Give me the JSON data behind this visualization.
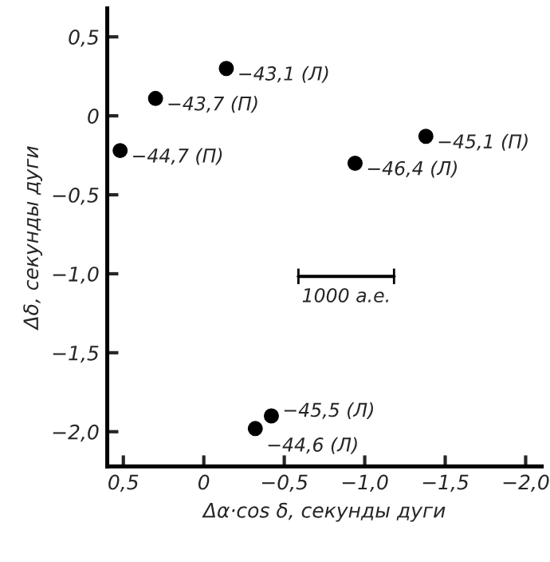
{
  "chart_data": {
    "type": "scatter",
    "xlabel": "Δα·cos δ, секунды дуги",
    "ylabel": "Δδ, секунды дуги",
    "series": [
      {
        "color": "#000000",
        "x": [
          -0.14,
          0.3,
          0.52,
          -1.38,
          -0.94,
          -0.42,
          -0.32
        ],
        "values": [
          0.3,
          0.11,
          -0.22,
          -0.13,
          -0.3,
          -1.9,
          -1.98
        ]
      }
    ],
    "marker": "circle",
    "xlim": [
      0.6,
      -2.1
    ],
    "ylim": [
      -2.22,
      0.68
    ],
    "xticks": [
      {
        "value": 0.5,
        "label": "0,5"
      },
      0,
      {
        "value": -0.5,
        "label": "−0,5"
      },
      {
        "value": -1.0,
        "label": "−1,0"
      },
      {
        "value": -1.5,
        "label": "−1,5"
      },
      {
        "value": -2.0,
        "label": "−2,0"
      }
    ],
    "yticks": [
      {
        "value": 0.5,
        "label": "0,5"
      },
      0,
      {
        "value": -0.5,
        "label": "−0,5"
      },
      {
        "value": -1.0,
        "label": "−1,0"
      },
      {
        "value": -1.5,
        "label": "−1,5"
      },
      {
        "value": -2.0,
        "label": "−2,0"
      }
    ],
    "annotations": [
      {
        "text": "−43,1 (Л)",
        "x": -0.14,
        "y": 0.3
      },
      {
        "text": "−43,7 (П)",
        "x": 0.3,
        "y": 0.11
      },
      {
        "text": "−44,7 (П)",
        "x": 0.52,
        "y": -0.22
      },
      {
        "text": "−45,1 (П)",
        "x": -1.38,
        "y": -0.13
      },
      {
        "text": "−46,4 (Л)",
        "x": -0.94,
        "y": -0.3
      },
      {
        "text": "−45,5 (Л)",
        "x": -0.42,
        "y": -1.9
      },
      {
        "text": "−44,6 (Л)",
        "x": -0.32,
        "y": -1.98
      },
      "1000 а.е."
    ],
    "grid": false,
    "legend": false
  }
}
